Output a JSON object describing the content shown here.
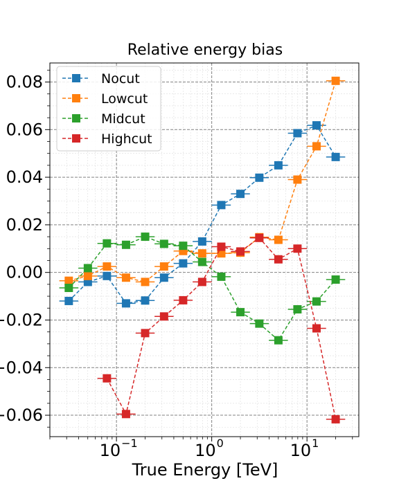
{
  "chart_data": {
    "type": "line",
    "title": "Relative energy bias",
    "xlabel": "True Energy [TeV]",
    "ylabel": "",
    "xscale": "log",
    "xlim": [
      0.02,
      35
    ],
    "ylim": [
      -0.069,
      0.088
    ],
    "grid": true,
    "legend_position": "top-left",
    "x_ticks": [
      {
        "value": 0.1,
        "base": "10",
        "exp": "−1"
      },
      {
        "value": 1,
        "base": "10",
        "exp": "0"
      },
      {
        "value": 10,
        "base": "10",
        "exp": "1"
      }
    ],
    "y_ticks": [
      {
        "value": 0.08,
        "label": "0.08"
      },
      {
        "value": 0.06,
        "label": "0.06"
      },
      {
        "value": 0.04,
        "label": "0.04"
      },
      {
        "value": 0.02,
        "label": "0.02"
      },
      {
        "value": 0.0,
        "label": "0.00"
      },
      {
        "value": -0.02,
        "label": "−0.02"
      },
      {
        "value": -0.04,
        "label": "−0.04"
      },
      {
        "value": -0.06,
        "label": "−0.06"
      }
    ],
    "series": [
      {
        "name": "Nocut",
        "color": "#1f77b4",
        "points": [
          [
            0.0316,
            -0.012
          ],
          [
            0.0501,
            -0.004
          ],
          [
            0.0794,
            -0.0015
          ],
          [
            0.126,
            -0.013
          ],
          [
            0.2,
            -0.0118
          ],
          [
            0.316,
            -0.0022
          ],
          [
            0.501,
            0.0038
          ],
          [
            0.794,
            0.013
          ],
          [
            1.26,
            0.0283
          ],
          [
            2.0,
            0.033
          ],
          [
            3.16,
            0.0398
          ],
          [
            5.01,
            0.045
          ],
          [
            7.94,
            0.0585
          ],
          [
            12.6,
            0.0618
          ],
          [
            20.0,
            0.0485
          ]
        ]
      },
      {
        "name": "Lowcut",
        "color": "#ff7f0e",
        "points": [
          [
            0.0316,
            -0.0035
          ],
          [
            0.0501,
            -0.0015
          ],
          [
            0.0794,
            0.0025
          ],
          [
            0.126,
            -0.0022
          ],
          [
            0.2,
            -0.004
          ],
          [
            0.316,
            0.0025
          ],
          [
            0.501,
            0.009
          ],
          [
            0.794,
            0.008
          ],
          [
            1.26,
            0.008
          ],
          [
            2.0,
            0.0083
          ],
          [
            3.16,
            0.0148
          ],
          [
            5.01,
            0.0137
          ],
          [
            7.94,
            0.039
          ],
          [
            12.6,
            0.053
          ],
          [
            20.0,
            0.0805
          ]
        ]
      },
      {
        "name": "Midcut",
        "color": "#2ca02c",
        "points": [
          [
            0.0316,
            -0.0065
          ],
          [
            0.0501,
            0.0018
          ],
          [
            0.0794,
            0.0122
          ],
          [
            0.126,
            0.0116
          ],
          [
            0.2,
            0.015
          ],
          [
            0.316,
            0.012
          ],
          [
            0.501,
            0.0112
          ],
          [
            0.794,
            0.0044
          ],
          [
            1.26,
            -0.0018
          ],
          [
            2.0,
            -0.0167
          ],
          [
            3.16,
            -0.0215
          ],
          [
            5.01,
            -0.0285
          ],
          [
            7.94,
            -0.0155
          ],
          [
            12.6,
            -0.0122
          ],
          [
            20.0,
            -0.003
          ]
        ]
      },
      {
        "name": "Highcut",
        "color": "#d62728",
        "points": [
          [
            0.0794,
            -0.0445
          ],
          [
            0.126,
            -0.0595
          ],
          [
            0.2,
            -0.0255
          ],
          [
            0.316,
            -0.0185
          ],
          [
            0.501,
            -0.0117
          ],
          [
            0.794,
            -0.004
          ],
          [
            1.26,
            0.0108
          ],
          [
            2.0,
            0.0088
          ],
          [
            3.16,
            0.0145
          ],
          [
            5.01,
            0.0055
          ],
          [
            7.94,
            0.01
          ],
          [
            12.6,
            -0.0235
          ],
          [
            20.0,
            -0.0617
          ]
        ]
      }
    ]
  }
}
